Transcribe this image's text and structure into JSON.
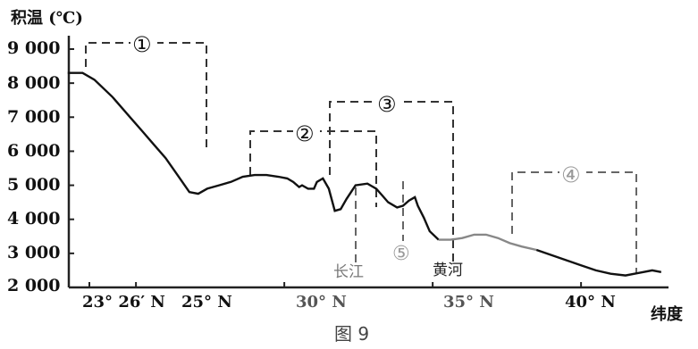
{
  "chart_data": {
    "type": "line",
    "title": "",
    "ylabel": "积温 (℃)",
    "xlabel": "纬度",
    "ylim": [
      2000,
      9000
    ],
    "yticks": [
      "2 000",
      "3 000",
      "4 000",
      "5 000",
      "6 000",
      "7 000",
      "8 000",
      "9 000"
    ],
    "ytick_values": [
      2000,
      3000,
      4000,
      5000,
      6000,
      7000,
      8000,
      9000
    ],
    "xticks": [
      "23° 26′ N",
      "25° N",
      "30° N",
      "35° N",
      "40° N"
    ],
    "xtick_values": [
      23.43,
      25,
      30,
      35,
      40
    ],
    "series": [
      {
        "x": [
          22.7,
          23.2,
          23.6,
          24.2,
          24.8,
          25.2,
          25.6,
          26.0,
          26.4,
          26.8,
          27.1,
          27.4,
          27.8,
          28.2,
          28.6,
          29.0,
          29.4,
          29.8,
          30.1,
          30.3,
          30.5,
          30.6,
          30.8,
          31.0,
          31.1,
          31.3,
          31.5,
          31.7,
          31.9,
          32.1,
          32.4,
          32.8,
          33.1,
          33.3,
          33.5,
          33.8,
          34.0,
          34.2,
          34.4,
          34.5,
          34.7,
          34.9,
          35.2,
          35.6,
          36.0,
          36.4,
          36.8,
          37.2,
          37.6,
          38.0,
          38.5,
          39.0,
          39.5,
          40.0,
          40.5,
          41.0,
          41.5,
          41.8,
          42.1,
          42.4,
          42.7
        ],
        "y": [
          8300,
          8300,
          8100,
          7600,
          7000,
          6600,
          6200,
          5800,
          5300,
          4800,
          4750,
          4900,
          5000,
          5100,
          5250,
          5300,
          5300,
          5250,
          5200,
          5100,
          4950,
          5000,
          4900,
          4900,
          5100,
          5200,
          4900,
          4250,
          4300,
          4600,
          5000,
          5050,
          4900,
          4700,
          4500,
          4350,
          4400,
          4550,
          4650,
          4400,
          4050,
          3650,
          3400,
          3400,
          3450,
          3550,
          3550,
          3450,
          3300,
          3200,
          3100,
          2950,
          2800,
          2650,
          2500,
          2400,
          2350,
          2400,
          2450,
          2500,
          2450
        ]
      }
    ],
    "regions": [
      {
        "label": "①",
        "y_top": 9100,
        "x_from": 23.5,
        "x_to": 25.5
      },
      {
        "label": "②",
        "y_top": 6600,
        "x_from": 27.3,
        "x_to": 31.7
      },
      {
        "label": "③",
        "y_top": 7400,
        "x_from": 30.2,
        "x_to": 34.6
      },
      {
        "label": "④",
        "y_top": 5300,
        "x_from": 36.5,
        "x_to": 41.6
      }
    ],
    "annotations": [
      {
        "text": "长江",
        "x": 30.7
      },
      {
        "text": "⑤",
        "x": 32.5
      },
      {
        "text": "黄河",
        "x": 34.2
      }
    ],
    "grid": false,
    "legend": "none"
  },
  "figure_caption": "图 9"
}
